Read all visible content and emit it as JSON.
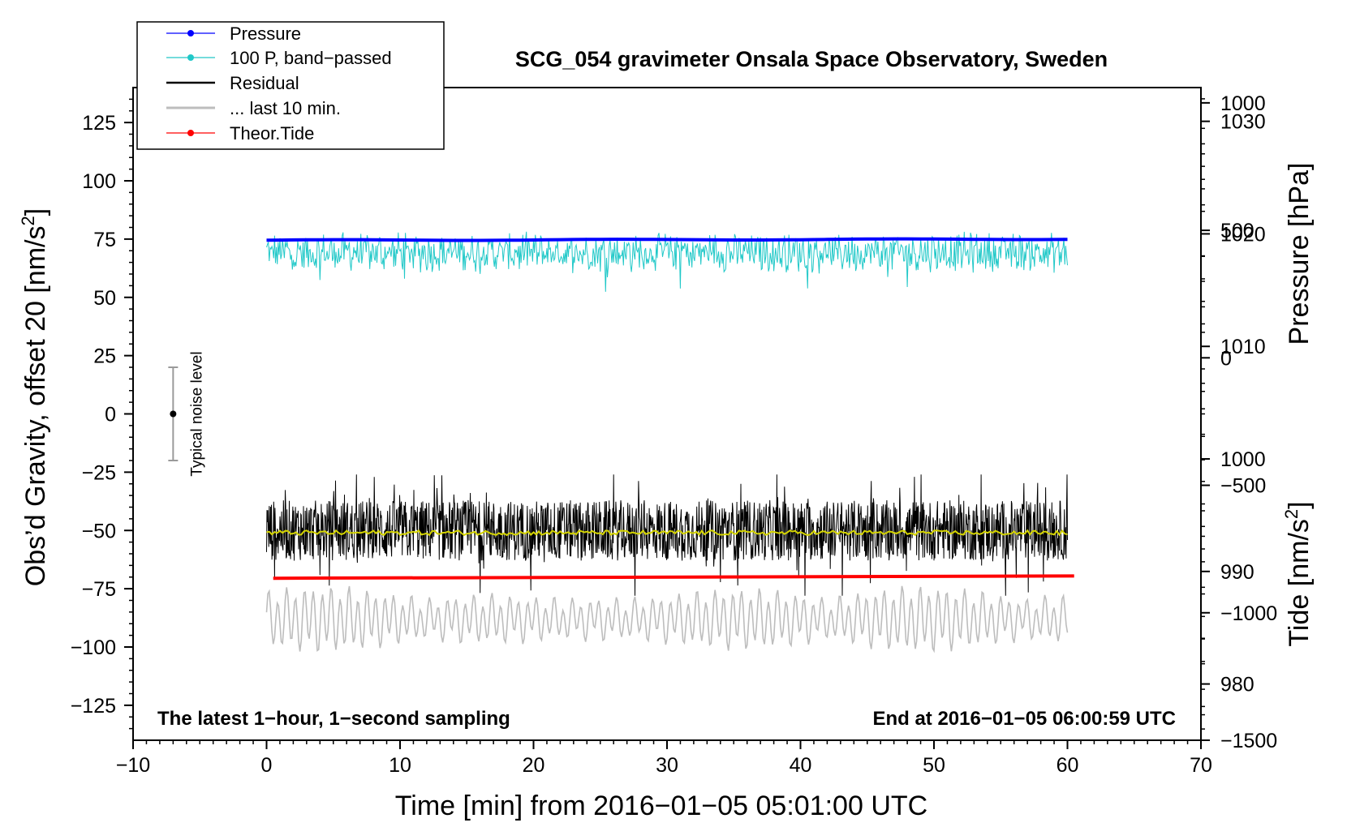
{
  "chart_data": {
    "type": "line",
    "title": "SCG_054 gravimeter Onsala Space Observatory, Sweden",
    "xlabel": "Time [min] from 2016−01−05 05:01:00 UTC",
    "ylabel_left": "Obs’d Gravity, offset 20 [nm/s",
    "ylabel_left_sup": "2",
    "ylabel_left_tail": "]",
    "ylabel_right_top": "Pressure [hPa]",
    "ylabel_right_bottom": "Tide [nm/s",
    "ylabel_right_bottom_sup": "2",
    "ylabel_right_bottom_tail": "]",
    "xlim": [
      -10,
      70
    ],
    "ylim_left": [
      -140,
      140
    ],
    "pressure_axis_range": [
      975,
      1033
    ],
    "tide_axis_range": [
      -1500,
      1060
    ],
    "x_ticks": [
      -10,
      0,
      10,
      20,
      30,
      40,
      50,
      60,
      70
    ],
    "x_tick_labels": [
      "−10",
      "0",
      "10",
      "20",
      "30",
      "40",
      "50",
      "60",
      "70"
    ],
    "y_left_ticks": [
      -125,
      -100,
      -75,
      -50,
      -25,
      0,
      25,
      50,
      75,
      100,
      125
    ],
    "y_left_tick_labels": [
      "−125",
      "−100",
      "−75",
      "−50",
      "−25",
      "0",
      "25",
      "50",
      "75",
      "100",
      "125"
    ],
    "pressure_ticks": [
      980,
      990,
      1000,
      1010,
      1020,
      1030
    ],
    "pressure_tick_labels": [
      "980",
      "990",
      "1000",
      "1010",
      "1020",
      "1030"
    ],
    "tide_ticks": [
      -1500,
      -1000,
      -500,
      0,
      500,
      1000
    ],
    "tide_tick_labels": [
      "−1500",
      "−1000",
      "−500",
      "0",
      "500",
      "1000"
    ],
    "annotations": {
      "bottom_left": "The latest 1−hour, 1−second sampling",
      "bottom_right": "End at 2016−01−05 06:00:59 UTC",
      "noise_label": "Typical noise level"
    },
    "noise_bar": {
      "x": -7,
      "center": 0,
      "low": -20,
      "high": 20
    },
    "legend": {
      "position": "top-left",
      "entries": [
        {
          "label": "Pressure",
          "color": "#0000ff",
          "marker": true
        },
        {
          "label": "100 P, band−passed",
          "color": "#20c8c8",
          "marker": true
        },
        {
          "label": "Residual",
          "color": "#000000",
          "marker": false
        },
        {
          "label": "... last 10 min.",
          "color": "#bdbdbd",
          "marker": false
        },
        {
          "label": "Theor.Tide",
          "color": "#ff0000",
          "marker": true
        }
      ]
    },
    "series": [
      {
        "name": "Pressure",
        "color": "#0000ff",
        "x_range": [
          0,
          60
        ],
        "approx_value": 74.5,
        "end_value": 75
      },
      {
        "name": "100 P, band−passed",
        "color": "#20c8c8",
        "x_range": [
          0,
          60
        ],
        "center": 70,
        "min": 47,
        "max": 84
      },
      {
        "name": "Residual",
        "color": "#000000",
        "x_range": [
          0,
          60
        ],
        "center": -50,
        "min": -78,
        "max": -26
      },
      {
        "name": "Residual smoothed",
        "color": "#d4d400",
        "x_range": [
          0,
          60
        ],
        "center": -51
      },
      {
        "name": "... last 10 min.",
        "color": "#bdbdbd",
        "x_range": [
          0,
          60
        ],
        "center": -88,
        "min": -109,
        "max": -72
      },
      {
        "name": "Theor.Tide",
        "color": "#ff0000",
        "x_range": [
          0.5,
          60.5
        ],
        "start_value": -70.5,
        "end_value": -69.5
      }
    ]
  }
}
